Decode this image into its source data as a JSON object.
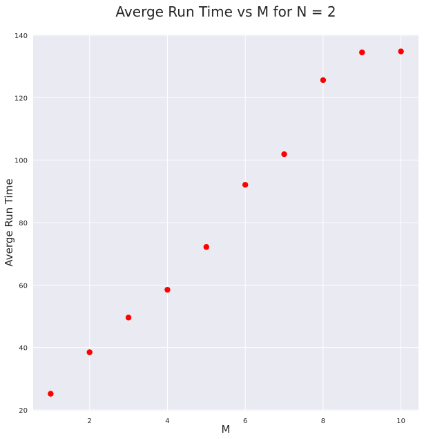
{
  "chart_data": {
    "type": "scatter",
    "title": "Averge Run Time vs M for N = 2",
    "xlabel": "M",
    "ylabel": "Averge Run Time",
    "x": [
      1,
      2,
      3,
      4,
      5,
      6,
      7,
      8,
      9,
      10
    ],
    "y": [
      25.2,
      38.5,
      49.6,
      58.5,
      72.2,
      92.1,
      101.9,
      125.6,
      134.5,
      134.8
    ],
    "xlim": [
      0.55,
      10.45
    ],
    "ylim": [
      19.8,
      140.2
    ],
    "xticks": [
      2,
      4,
      6,
      8,
      10
    ],
    "yticks": [
      20,
      40,
      60,
      80,
      100,
      120,
      140
    ],
    "grid": true,
    "marker_color": "#ff0000",
    "background_color": "#eaeaf2",
    "grid_color": "#ffffff"
  }
}
